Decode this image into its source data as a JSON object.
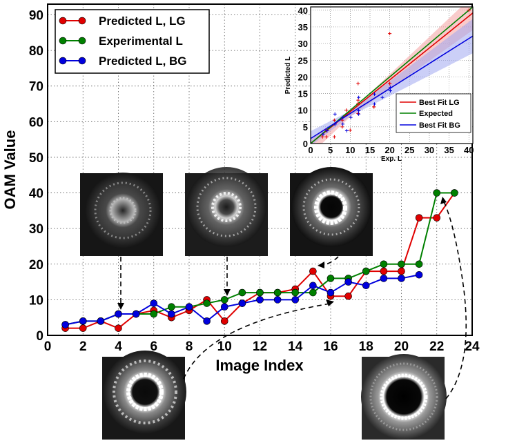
{
  "chart_data": [
    {
      "type": "line",
      "xlabel": "Image Index",
      "ylabel": "OAM Value",
      "xlim": [
        0,
        24
      ],
      "ylim": [
        0,
        93
      ],
      "xticks": [
        0,
        2,
        4,
        6,
        8,
        10,
        12,
        14,
        16,
        18,
        20,
        22,
        24
      ],
      "yticks": [
        0,
        10,
        20,
        30,
        40,
        50,
        60,
        70,
        80,
        90
      ],
      "grid": true,
      "legend_position": "top-left",
      "series": [
        {
          "name": "Predicted L, LG",
          "color": "#e00000",
          "x": [
            1,
            2,
            3,
            4,
            5,
            6,
            7,
            8,
            9,
            10,
            11,
            12,
            13,
            14,
            15,
            16,
            17,
            18,
            19,
            20,
            21,
            22,
            23
          ],
          "y": [
            2,
            2,
            4,
            2,
            6,
            7,
            5,
            7,
            10,
            4,
            9,
            12,
            12,
            13,
            18,
            11,
            11,
            18,
            18,
            18,
            33,
            33,
            40
          ]
        },
        {
          "name": "Experimental L",
          "color": "#008000",
          "x": [
            1,
            2,
            3,
            4,
            5,
            6,
            7,
            8,
            9,
            10,
            11,
            12,
            13,
            14,
            15,
            16,
            17,
            18,
            19,
            20,
            21,
            22,
            23
          ],
          "y": [
            3,
            4,
            4,
            6,
            6,
            6,
            8,
            8,
            9,
            10,
            12,
            12,
            12,
            12,
            12,
            16,
            16,
            18,
            20,
            20,
            20,
            40,
            40
          ]
        },
        {
          "name": "Predicted L, BG",
          "color": "#0000dd",
          "x": [
            1,
            2,
            3,
            4,
            5,
            6,
            7,
            8,
            9,
            10,
            11,
            12,
            13,
            14,
            15,
            16,
            17,
            18,
            19,
            20,
            21
          ],
          "y": [
            3,
            4,
            4,
            6,
            6,
            9,
            6,
            8,
            4,
            8,
            9,
            10,
            10,
            10,
            14,
            12,
            15,
            14,
            16,
            16,
            17
          ]
        }
      ]
    },
    {
      "type": "scatter",
      "xlabel": "Exp. L",
      "ylabel": "Predicted L",
      "xlim": [
        0,
        41
      ],
      "ylim": [
        0,
        41
      ],
      "xticks": [
        0,
        5,
        10,
        15,
        20,
        25,
        30,
        35,
        40
      ],
      "yticks": [
        0,
        5,
        10,
        15,
        20,
        25,
        30,
        35,
        40
      ],
      "grid": true,
      "legend_position": "bottom-right",
      "lines": [
        {
          "name": "Best Fit LG",
          "color": "#e00000",
          "intercept": -1.0,
          "slope": 0.98
        },
        {
          "name": "Expected",
          "color": "#008000",
          "intercept": 0,
          "slope": 1.0
        },
        {
          "name": "Best Fit BG",
          "color": "#0000dd",
          "intercept": 1.5,
          "slope": 0.75
        }
      ],
      "points_lg": [
        [
          3,
          2
        ],
        [
          4,
          2
        ],
        [
          4,
          4
        ],
        [
          6,
          2
        ],
        [
          6,
          7
        ],
        [
          8,
          5
        ],
        [
          8,
          7
        ],
        [
          9,
          10
        ],
        [
          10,
          4
        ],
        [
          12,
          9
        ],
        [
          12,
          12
        ],
        [
          12,
          13
        ],
        [
          12,
          18
        ],
        [
          16,
          11
        ],
        [
          16,
          11
        ],
        [
          20,
          18
        ],
        [
          20,
          18
        ],
        [
          20,
          33
        ],
        [
          40,
          40
        ]
      ],
      "points_bg": [
        [
          3,
          3
        ],
        [
          4,
          4
        ],
        [
          4,
          4
        ],
        [
          6,
          6
        ],
        [
          6,
          6
        ],
        [
          6,
          9
        ],
        [
          8,
          6
        ],
        [
          8,
          8
        ],
        [
          9,
          4
        ],
        [
          10,
          8
        ],
        [
          12,
          9
        ],
        [
          12,
          10
        ],
        [
          12,
          10
        ],
        [
          12,
          10
        ],
        [
          12,
          14
        ],
        [
          16,
          12
        ],
        [
          16,
          15
        ],
        [
          18,
          14
        ],
        [
          20,
          16
        ],
        [
          20,
          16
        ],
        [
          20,
          17
        ]
      ]
    }
  ]
}
